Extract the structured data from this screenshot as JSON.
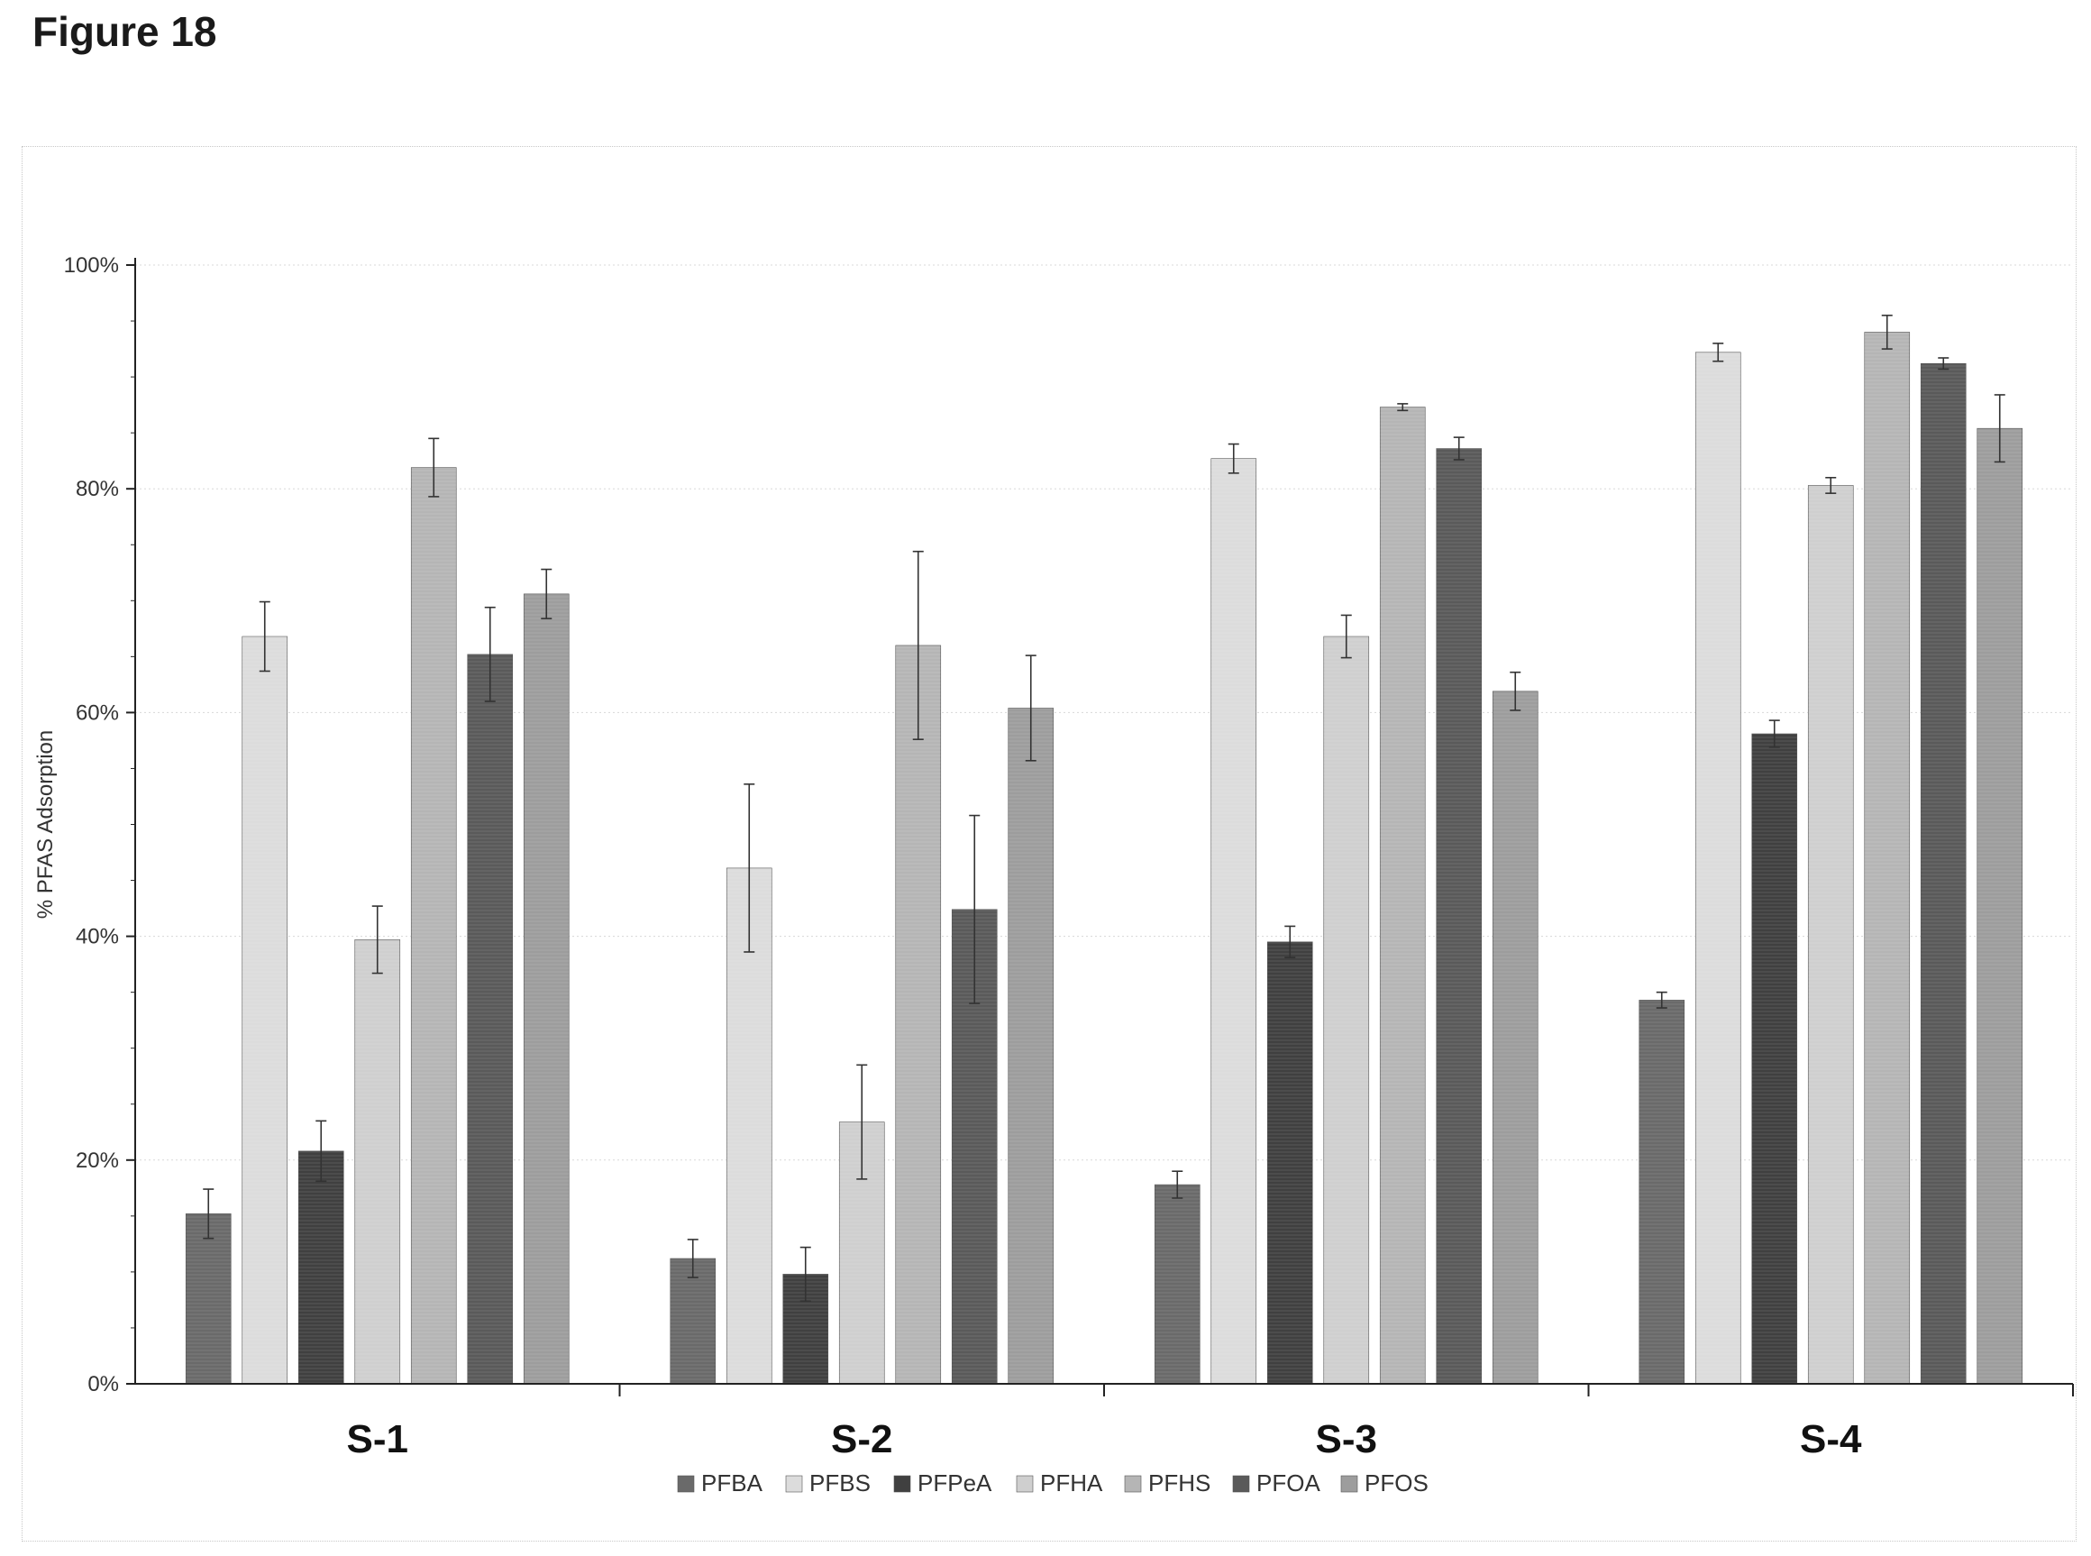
{
  "figure_label": "Figure 18",
  "chart_data": {
    "type": "bar",
    "ylabel": "% PFAS Adsorption",
    "xlabel": "",
    "ylim": [
      0,
      100
    ],
    "yticks": [
      "0%",
      "20%",
      "40%",
      "60%",
      "80%",
      "100%"
    ],
    "categories": [
      "S-1",
      "S-2",
      "S-3",
      "S-4"
    ],
    "legend_position": "bottom",
    "series": [
      {
        "name": "PFBA",
        "color": "#6a6a6a",
        "values": [
          15.2,
          11.2,
          17.8,
          34.3
        ],
        "errors": [
          2.2,
          1.7,
          1.2,
          0.7
        ]
      },
      {
        "name": "PFBS",
        "color": "#dcdcdc",
        "values": [
          66.8,
          46.1,
          82.7,
          92.2
        ],
        "errors": [
          3.1,
          7.5,
          1.3,
          0.8
        ]
      },
      {
        "name": "PFPeA",
        "color": "#404040",
        "values": [
          20.8,
          9.8,
          39.5,
          58.1
        ],
        "errors": [
          2.7,
          2.4,
          1.4,
          1.2
        ]
      },
      {
        "name": "PFHA",
        "color": "#cfcfcf",
        "values": [
          39.7,
          23.4,
          66.8,
          80.3
        ],
        "errors": [
          3.0,
          5.1,
          1.9,
          0.7
        ]
      },
      {
        "name": "PFHS",
        "color": "#b5b5b5",
        "values": [
          81.9,
          66.0,
          87.3,
          94.0
        ],
        "errors": [
          2.6,
          8.4,
          0.3,
          1.5
        ]
      },
      {
        "name": "PFOA",
        "color": "#5a5a5a",
        "values": [
          65.2,
          42.4,
          83.6,
          91.2
        ],
        "errors": [
          4.2,
          8.4,
          1.0,
          0.5
        ]
      },
      {
        "name": "PFOS",
        "color": "#9d9d9d",
        "values": [
          70.6,
          60.4,
          61.9,
          85.4
        ],
        "errors": [
          2.2,
          4.7,
          1.7,
          3.0
        ]
      }
    ]
  }
}
